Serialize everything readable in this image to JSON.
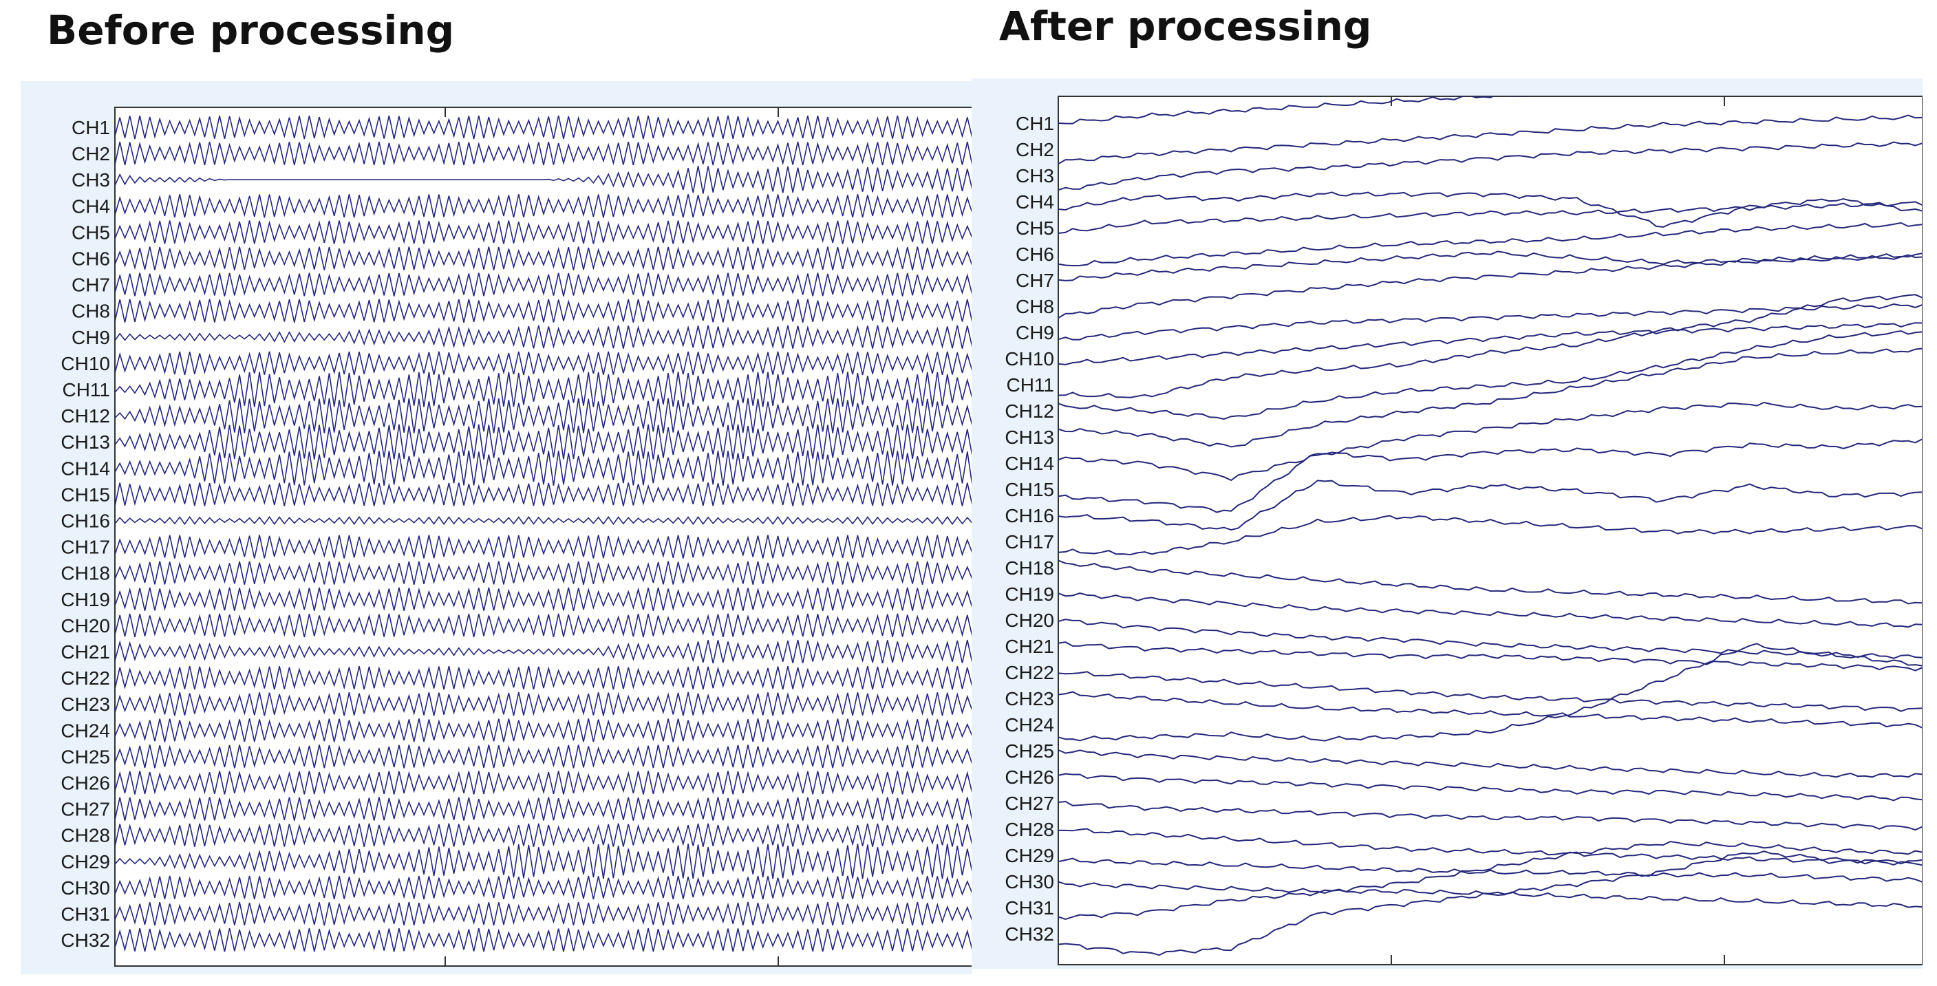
{
  "titles": {
    "left": "Before processing",
    "right": "After processing"
  },
  "colors": {
    "trace": "#25277a",
    "plot_bg": "#ffffff",
    "panel_bg": "#eaf2fb",
    "axis": "#333333"
  },
  "chart_data": [
    {
      "type": "line",
      "title": "Before processing",
      "xlabel": "",
      "ylabel": "",
      "x_tick_labels": [],
      "grid": false,
      "legend": "none",
      "channels": [
        "CH1",
        "CH2",
        "CH3",
        "CH4",
        "CH5",
        "CH6",
        "CH7",
        "CH8",
        "CH9",
        "CH10",
        "CH11",
        "CH12",
        "CH13",
        "CH14",
        "CH15",
        "CH16",
        "CH17",
        "CH18",
        "CH19",
        "CH20",
        "CH21",
        "CH22",
        "CH23",
        "CH24",
        "CH25",
        "CH26",
        "CH27",
        "CH28",
        "CH29",
        "CH30",
        "CH31",
        "CH32"
      ],
      "series_description": "dense periodic oscillation on every channel",
      "channel_amplitude_envelope": {
        "x": [
          0,
          0.14,
          0.5,
          0.68,
          1.0
        ],
        "CH3": [
          0.5,
          0.0,
          0.0,
          1.2,
          1.0
        ],
        "CH9": [
          0.3,
          0.3,
          1.0,
          1.0,
          1.0
        ],
        "CH11": [
          0.4,
          1.5,
          1.5,
          1.5,
          1.5
        ],
        "CH12": [
          0.4,
          1.5,
          1.5,
          1.5,
          1.5
        ],
        "CH13": [
          0.4,
          1.5,
          1.5,
          1.5,
          1.5
        ],
        "CH14": [
          0.4,
          1.5,
          1.5,
          1.5,
          1.5
        ],
        "CH16": [
          0.3,
          0.3,
          0.3,
          0.3,
          0.3
        ],
        "CH21": [
          0.8,
          0.6,
          0.2,
          1.0,
          1.0
        ],
        "CH29": [
          0.3,
          0.8,
          1.5,
          1.5,
          1.5
        ]
      }
    },
    {
      "type": "line",
      "title": "After processing",
      "xlabel": "",
      "ylabel": "",
      "x_tick_labels": [],
      "grid": false,
      "legend": "none",
      "channels": [
        "CH1",
        "CH2",
        "CH3",
        "CH4",
        "CH5",
        "CH6",
        "CH7",
        "CH8",
        "CH9",
        "CH10",
        "CH11",
        "CH12",
        "CH13",
        "CH14",
        "CH15",
        "CH16",
        "CH17",
        "CH18",
        "CH19",
        "CH20",
        "CH21",
        "CH22",
        "CH23",
        "CH24",
        "CH25",
        "CH26",
        "CH27",
        "CH28",
        "CH29",
        "CH30",
        "CH31",
        "CH32"
      ],
      "x": [
        0,
        0.1,
        0.2,
        0.3,
        0.4,
        0.5,
        0.6,
        0.7,
        0.8,
        0.9,
        1.0
      ],
      "series_offsets": [
        [
          0.0,
          0.3,
          0.5,
          0.7,
          0.9,
          1.1,
          1.2,
          1.3,
          1.4,
          1.5,
          1.6
        ],
        [
          -0.5,
          -0.2,
          0.0,
          0.2,
          0.4,
          0.6,
          0.8,
          1.0,
          1.1,
          1.2,
          1.3
        ],
        [
          -0.6,
          -0.1,
          0.2,
          0.3,
          0.5,
          0.7,
          0.9,
          1.0,
          1.1,
          1.2,
          1.3
        ],
        [
          -0.3,
          0.2,
          0.1,
          0.3,
          0.3,
          0.3,
          0.1,
          -1.0,
          -0.2,
          0.1,
          -0.4
        ],
        [
          -0.2,
          0.2,
          0.3,
          0.4,
          0.5,
          0.6,
          0.6,
          0.7,
          0.8,
          0.9,
          1.0
        ],
        [
          -0.5,
          -0.2,
          0.0,
          0.2,
          0.4,
          0.5,
          0.6,
          0.8,
          1.0,
          1.1,
          1.2
        ],
        [
          0.0,
          0.3,
          0.5,
          0.7,
          0.9,
          1.1,
          0.9,
          0.7,
          0.8,
          0.9,
          1.0
        ],
        [
          -0.4,
          0.1,
          0.4,
          0.7,
          1.0,
          1.2,
          1.4,
          1.6,
          1.8,
          1.9,
          2.0
        ],
        [
          -0.3,
          0.0,
          0.2,
          0.4,
          0.5,
          0.6,
          0.7,
          0.8,
          0.9,
          1.0,
          1.1
        ],
        [
          -0.2,
          0.0,
          0.2,
          0.4,
          0.6,
          0.8,
          1.0,
          1.1,
          1.2,
          1.3,
          1.4
        ],
        [
          -0.4,
          -0.5,
          0.3,
          0.6,
          0.8,
          1.3,
          1.6,
          2.2,
          2.6,
          3.4,
          3.6
        ],
        [
          0.2,
          0.0,
          -0.3,
          0.4,
          0.8,
          1.0,
          1.2,
          1.8,
          2.5,
          3.0,
          3.2
        ],
        [
          0.3,
          0.1,
          -0.4,
          0.5,
          1.0,
          1.4,
          2.0,
          2.6,
          3.2,
          3.4,
          3.5
        ],
        [
          0.2,
          0.0,
          -0.6,
          0.3,
          1.0,
          1.4,
          1.8,
          2.2,
          2.4,
          2.2,
          2.3
        ],
        [
          -0.3,
          -0.5,
          -0.9,
          1.5,
          1.2,
          1.5,
          1.6,
          1.4,
          1.8,
          1.7,
          2.0
        ],
        [
          0.0,
          -0.2,
          -0.6,
          1.4,
          0.9,
          1.2,
          1.0,
          0.6,
          1.2,
          0.8,
          0.9
        ],
        [
          -0.4,
          -0.5,
          0.0,
          0.8,
          1.0,
          0.8,
          0.6,
          0.4,
          0.4,
          0.5,
          0.6
        ],
        [
          0.2,
          -0.1,
          -0.3,
          -0.5,
          -0.7,
          -0.9,
          -1.0,
          -1.1,
          -1.2,
          -1.3,
          -1.4
        ],
        [
          0.0,
          -0.2,
          -0.4,
          -0.6,
          -0.7,
          -0.8,
          -0.9,
          -1.0,
          -1.1,
          -1.2,
          -1.3
        ],
        [
          0.0,
          -0.3,
          -0.5,
          -0.7,
          -0.8,
          -1.0,
          -1.1,
          -1.2,
          -1.3,
          -1.4,
          -1.5
        ],
        [
          0.1,
          -0.1,
          -0.2,
          -0.3,
          -0.4,
          -0.4,
          -0.5,
          -0.6,
          -0.7,
          -0.8,
          -0.9
        ],
        [
          0.0,
          -0.2,
          -0.4,
          -0.6,
          -0.8,
          -1.0,
          -1.1,
          -1.2,
          -1.3,
          -1.4,
          -1.5
        ],
        [
          0.2,
          0.0,
          -0.2,
          -0.4,
          -0.5,
          -0.6,
          -0.7,
          -0.8,
          -0.9,
          -1.0,
          -1.1
        ],
        [
          -0.6,
          -0.5,
          -0.4,
          -0.6,
          -0.5,
          -0.3,
          0.5,
          1.8,
          3.2,
          2.8,
          2.4
        ],
        [
          0.0,
          -0.2,
          -0.3,
          -0.4,
          -0.5,
          -0.6,
          -0.7,
          -0.8,
          -0.9,
          -1.0,
          -1.0
        ],
        [
          0.1,
          -0.1,
          -0.2,
          -0.3,
          -0.4,
          -0.5,
          -0.6,
          -0.6,
          -0.7,
          -0.8,
          -0.9
        ],
        [
          0.0,
          -0.2,
          -0.3,
          -0.4,
          -0.5,
          -0.6,
          -0.6,
          -0.7,
          -0.8,
          -0.9,
          -1.0
        ],
        [
          0.0,
          -0.2,
          -0.4,
          -0.6,
          -0.8,
          -0.9,
          -1.0,
          -1.1,
          -1.2,
          -1.3,
          -1.3
        ],
        [
          -0.2,
          -0.3,
          -0.4,
          -0.5,
          -0.6,
          -0.7,
          -0.7,
          -0.8,
          -0.8,
          -0.9,
          -1.0
        ],
        [
          -0.1,
          -0.2,
          -0.3,
          -0.4,
          -0.4,
          -0.5,
          -0.6,
          -0.7,
          -0.8,
          -0.9,
          -1.0
        ],
        [
          -0.4,
          -0.2,
          0.3,
          0.6,
          1.0,
          1.6,
          2.2,
          2.6,
          2.5,
          2.3,
          2.2
        ],
        [
          -0.4,
          -0.8,
          -0.6,
          0.8,
          1.2,
          1.6,
          2.0,
          2.5,
          3.3,
          3.0,
          2.8
        ]
      ]
    }
  ]
}
